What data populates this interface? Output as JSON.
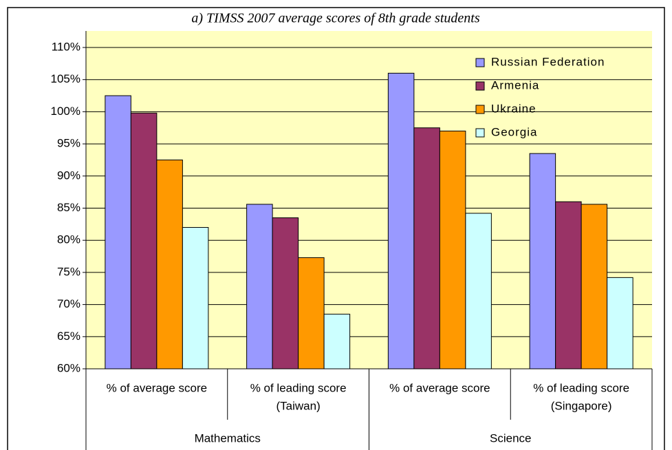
{
  "chart_data": {
    "type": "bar",
    "title": "a) TIMSS 2007 average scores of 8th grade students",
    "categories": [
      [
        "% of average score"
      ],
      [
        "% of leading score",
        "(Taiwan)"
      ],
      [
        "% of average score"
      ],
      [
        "% of leading score",
        "(Singapore)"
      ]
    ],
    "groups": [
      "Mathematics",
      "Science"
    ],
    "series": [
      {
        "name": "Russian Federation",
        "color": "#9999ff",
        "values": [
          102.5,
          85.6,
          106,
          93.5
        ]
      },
      {
        "name": "Armenia",
        "color": "#993366",
        "values": [
          99.8,
          83.5,
          97.5,
          86
        ]
      },
      {
        "name": "Ukraine",
        "color": "#ff9900",
        "values": [
          92.5,
          77.3,
          97,
          85.6
        ]
      },
      {
        "name": "Georgia",
        "color": "#ccffff",
        "values": [
          82,
          68.5,
          84.2,
          74.2
        ]
      }
    ],
    "ylim": [
      60,
      110
    ],
    "yticks": [
      {
        "value": 60,
        "label": "60%"
      },
      {
        "value": 65,
        "label": "65%"
      },
      {
        "value": 70,
        "label": "70%"
      },
      {
        "value": 75,
        "label": "75%"
      },
      {
        "value": 80,
        "label": "80%"
      },
      {
        "value": 85,
        "label": "85%"
      },
      {
        "value": 90,
        "label": "90%"
      },
      {
        "value": 95,
        "label": "95%"
      },
      {
        "value": 100,
        "label": "100%"
      },
      {
        "value": 105,
        "label": "105%"
      },
      {
        "value": 110,
        "label": "110%"
      }
    ],
    "grid": true,
    "legend": "upper right"
  }
}
